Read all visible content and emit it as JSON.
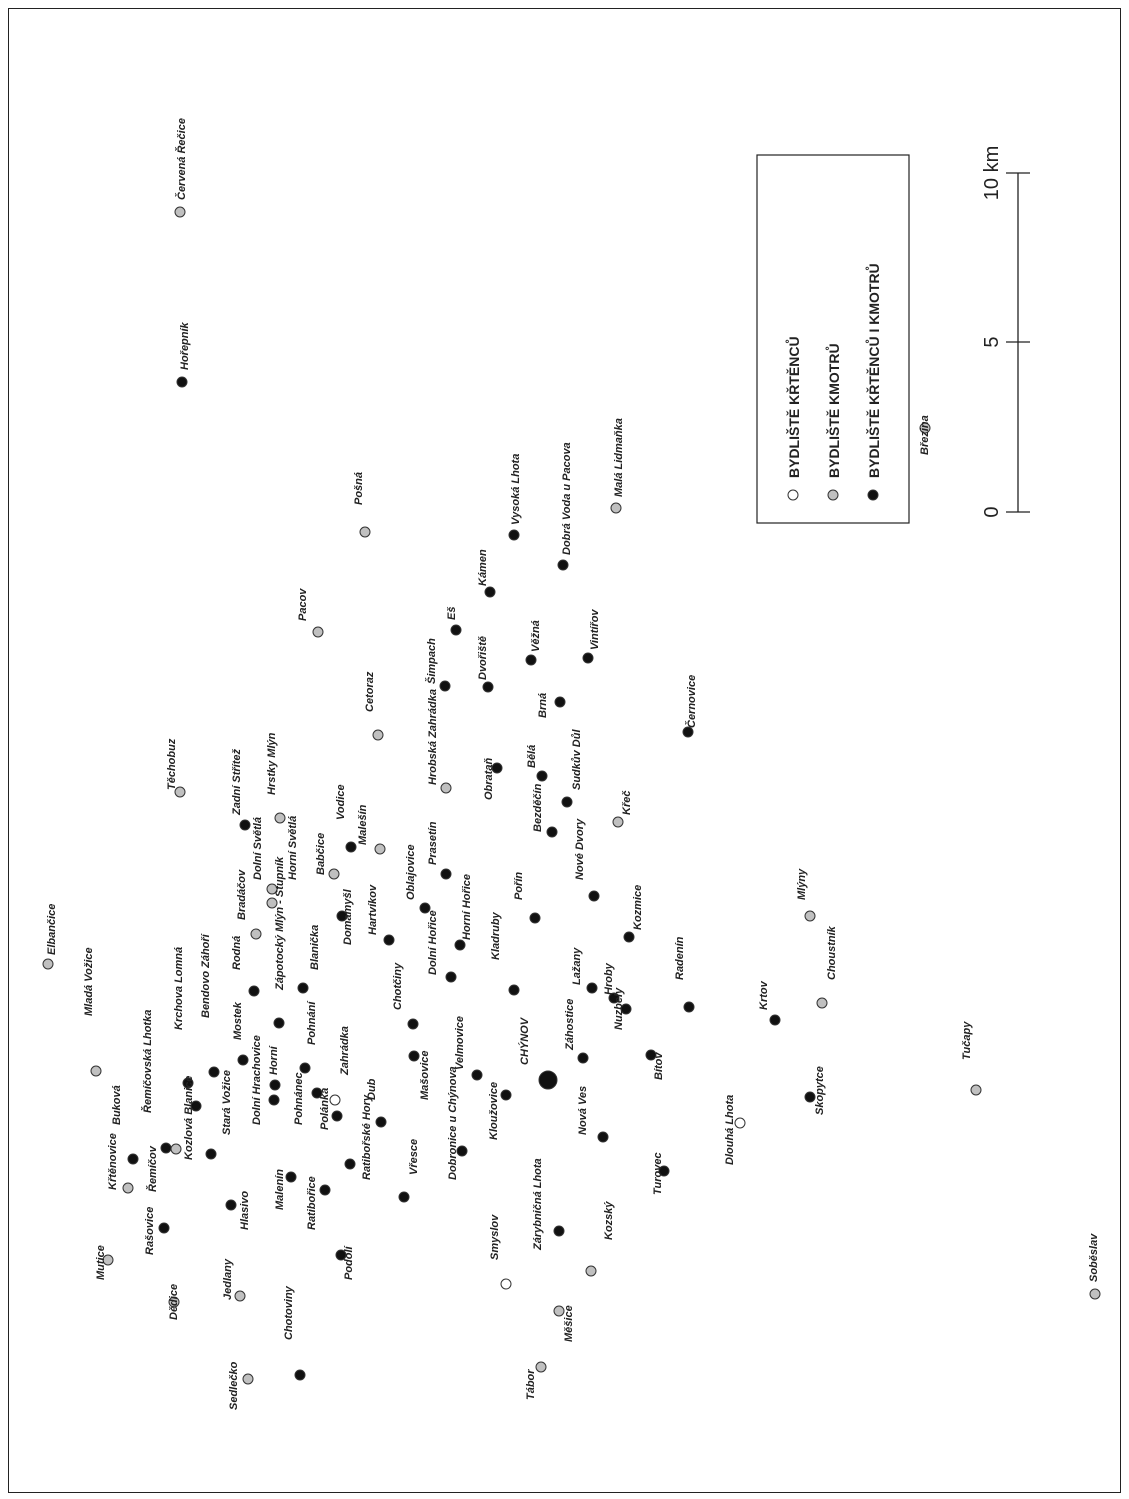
{
  "legend": {
    "white": "BYDLIŠTĚ KŘTĚNCŮ",
    "grey": "BYDLIŠTĚ KMOTRŮ",
    "black": "BYDLIŠTĚ KŘTĚNCŮ I KMOTRŮ"
  },
  "scale": {
    "labels": [
      "0",
      "5",
      "10 km"
    ]
  },
  "colors": {
    "white": "#ffffff",
    "grey": "#c0c0c0",
    "black": "#111111",
    "stroke": "#333333"
  },
  "places": [
    {
      "name": "Červená Řečice",
      "type": "grey"
    },
    {
      "name": "Hořepník",
      "type": "black"
    },
    {
      "name": "Březina",
      "type": "grey"
    },
    {
      "name": "Pošná",
      "type": "grey"
    },
    {
      "name": "Malá Lidmaňka",
      "type": "grey"
    },
    {
      "name": "Dobrá Voda u Pacova",
      "type": "black"
    },
    {
      "name": "Vysoká Lhota",
      "type": "black"
    },
    {
      "name": "Kámen",
      "type": "black"
    },
    {
      "name": "Pacov",
      "type": "grey"
    },
    {
      "name": "Eš",
      "type": "black"
    },
    {
      "name": "Šimpach",
      "type": "black"
    },
    {
      "name": "Věžná",
      "type": "black"
    },
    {
      "name": "Vintířov",
      "type": "black"
    },
    {
      "name": "Dvořiště",
      "type": "black"
    },
    {
      "name": "Brná",
      "type": "black"
    },
    {
      "name": "Cetoraz",
      "type": "grey"
    },
    {
      "name": "Černovice",
      "type": "black"
    },
    {
      "name": "Těchobuz",
      "type": "grey"
    },
    {
      "name": "Zadní Střítež",
      "type": "black"
    },
    {
      "name": "Hrstky Mlýn",
      "type": "grey"
    },
    {
      "name": "Hrobská Zahrádka",
      "type": "grey"
    },
    {
      "name": "Obrataň",
      "type": "black"
    },
    {
      "name": "Bělá",
      "type": "black"
    },
    {
      "name": "Sudkův Důl",
      "type": "black"
    },
    {
      "name": "Bezděčín",
      "type": "black"
    },
    {
      "name": "Křeč",
      "type": "grey"
    },
    {
      "name": "Malešín",
      "type": "grey"
    },
    {
      "name": "Vodice",
      "type": "black"
    },
    {
      "name": "Prasetín",
      "type": "black"
    },
    {
      "name": "Babčice",
      "type": "grey"
    },
    {
      "name": "Horní Světlá",
      "type": "grey"
    },
    {
      "name": "Dolní Světlá",
      "type": "grey"
    },
    {
      "name": "Bradáčov",
      "type": "grey"
    },
    {
      "name": "Elbančice",
      "type": "grey"
    },
    {
      "name": "Oblajovice",
      "type": "black"
    },
    {
      "name": "Hartvíkov",
      "type": "black"
    },
    {
      "name": "Domamyšl",
      "type": "black"
    },
    {
      "name": "Horní Hořice",
      "type": "black"
    },
    {
      "name": "Nové Dvory",
      "type": "black"
    },
    {
      "name": "Pořín",
      "type": "black"
    },
    {
      "name": "Mlýny",
      "type": "grey"
    },
    {
      "name": "Kozmice",
      "type": "black"
    },
    {
      "name": "Choustník",
      "type": "grey"
    },
    {
      "name": "Radenín",
      "type": "black"
    },
    {
      "name": "Krtov",
      "type": "black"
    },
    {
      "name": "Dolní Hořice",
      "type": "black"
    },
    {
      "name": "Kladruby",
      "type": "black"
    },
    {
      "name": "Lažany",
      "type": "black"
    },
    {
      "name": "Hroby",
      "type": "black"
    },
    {
      "name": "Nuzbely",
      "type": "black"
    },
    {
      "name": "Chotčiny",
      "type": "black"
    },
    {
      "name": "Blanička",
      "type": "black"
    },
    {
      "name": "Zápotocký Mlýn - Stupník",
      "type": "black"
    },
    {
      "name": "Rodná",
      "type": "black"
    },
    {
      "name": "Bendovo Záhoří",
      "type": "black"
    },
    {
      "name": "Mladá Vožice",
      "type": "grey"
    },
    {
      "name": "Krchova Lomná",
      "type": "black"
    },
    {
      "name": "Mostek",
      "type": "black"
    },
    {
      "name": "Horní",
      "type": "black"
    },
    {
      "name": "Pohnání",
      "type": "black"
    },
    {
      "name": "Mašovice",
      "type": "black"
    },
    {
      "name": "Velmovice",
      "type": "black"
    },
    {
      "name": "CHÝNOV",
      "type": "black",
      "major": true
    },
    {
      "name": "Záhostice",
      "type": "black"
    },
    {
      "name": "Bítov",
      "type": "black"
    },
    {
      "name": "Řemíčovská Lhotka",
      "type": "grey"
    },
    {
      "name": "Buková",
      "type": "black"
    },
    {
      "name": "Kozlová Blanice",
      "type": "black"
    },
    {
      "name": "Dolní Hrachovice",
      "type": "black"
    },
    {
      "name": "Pohnánec",
      "type": "black"
    },
    {
      "name": "Zahrádka",
      "type": "white"
    },
    {
      "name": "Polánka",
      "type": "black"
    },
    {
      "name": "Dub",
      "type": "black"
    },
    {
      "name": "Kloužovice",
      "type": "black"
    },
    {
      "name": "Nová Ves",
      "type": "black"
    },
    {
      "name": "Dlouhá Lhota",
      "type": "white"
    },
    {
      "name": "Skopytce",
      "type": "black"
    },
    {
      "name": "Tučapy",
      "type": "grey"
    },
    {
      "name": "Křtěnovice",
      "type": "grey"
    },
    {
      "name": "Řemíčov",
      "type": "black"
    },
    {
      "name": "Stará Vožice",
      "type": "black"
    },
    {
      "name": "Ratibořské Hory",
      "type": "black"
    },
    {
      "name": "Dobronice u Chýnova",
      "type": "black"
    },
    {
      "name": "Turovec",
      "type": "black"
    },
    {
      "name": "Malenín",
      "type": "black"
    },
    {
      "name": "Ratibořice",
      "type": "black"
    },
    {
      "name": "Vřesce",
      "type": "black"
    },
    {
      "name": "Hlasivo",
      "type": "black"
    },
    {
      "name": "Rašovice",
      "type": "black"
    },
    {
      "name": "Mutice",
      "type": "grey"
    },
    {
      "name": "Zárybničná Lhota",
      "type": "black"
    },
    {
      "name": "Kozský",
      "type": "grey"
    },
    {
      "name": "Podolí",
      "type": "black"
    },
    {
      "name": "Smyslov",
      "type": "white"
    },
    {
      "name": "Jedlany",
      "type": "grey"
    },
    {
      "name": "Dědice",
      "type": "grey"
    },
    {
      "name": "Měšice",
      "type": "grey"
    },
    {
      "name": "Soběslav",
      "type": "grey"
    },
    {
      "name": "Chotoviny",
      "type": "black"
    },
    {
      "name": "Tábor",
      "type": "grey"
    },
    {
      "name": "Sedlečko",
      "type": "grey"
    }
  ]
}
